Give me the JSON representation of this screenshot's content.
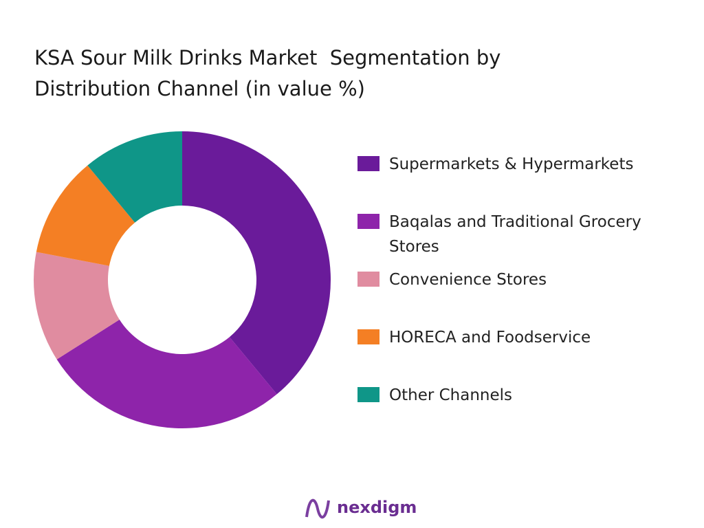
{
  "chart_data": {
    "type": "donut",
    "title": "KSA Sour Milk Drinks Market  Segmentation by Distribution Channel (in value %)",
    "categories": [
      "Supermarkets & Hypermarkets",
      "Baqalas and Traditional Grocery Stores",
      "Convenience Stores",
      "HORECA and Foodservice",
      "Other Channels"
    ],
    "values": [
      39,
      27,
      12,
      11,
      11
    ],
    "colors": [
      "#6a1b9a",
      "#8e24aa",
      "#e08ca0",
      "#f47f24",
      "#0f9688"
    ]
  },
  "brand": "nexdigm"
}
